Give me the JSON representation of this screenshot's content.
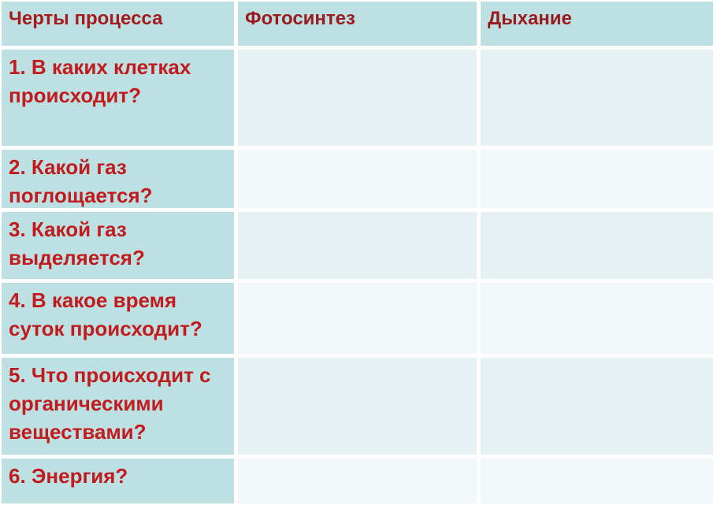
{
  "table": {
    "columns": [
      "Черты процесса",
      "Фотосинтез",
      "Дыхание"
    ],
    "rows": [
      {
        "feature": "1. В каких клетках происходит?",
        "photosynthesis": "",
        "respiration": ""
      },
      {
        "feature": "2. Какой газ поглощается?",
        "photosynthesis": "",
        "respiration": ""
      },
      {
        "feature": "3. Какой газ выделяется?",
        "photosynthesis": "",
        "respiration": ""
      },
      {
        "feature": "4. В какое время суток происходит?",
        "photosynthesis": "",
        "respiration": ""
      },
      {
        "feature": "5. Что происходит с органическими веществами?",
        "photosynthesis": "",
        "respiration": ""
      },
      {
        "feature": "6. Энергия?",
        "photosynthesis": "",
        "respiration": ""
      }
    ],
    "colors": {
      "header_bg": "#bde0e3",
      "feature_column_bg": "#bde0e3",
      "row_band_odd": "#e6f1f3",
      "row_band_even": "#f2f8fa",
      "header_text": "#9a1b1e",
      "body_text": "#c21b1e",
      "cell_gap": "#ffffff"
    }
  }
}
